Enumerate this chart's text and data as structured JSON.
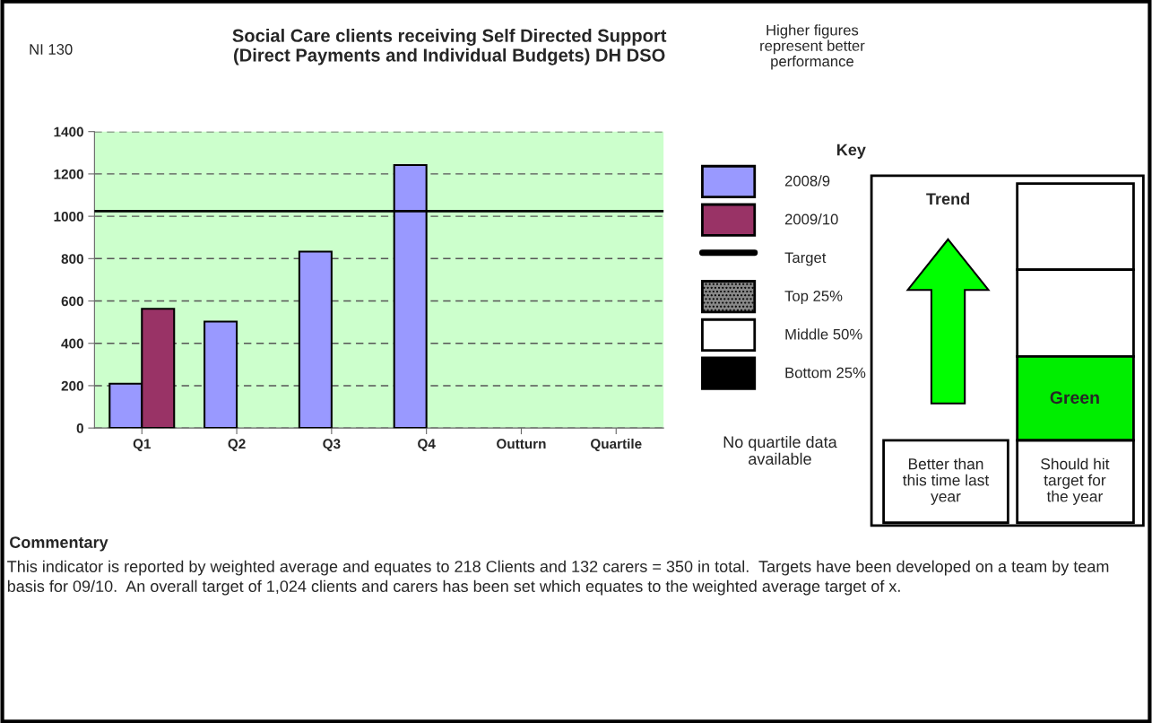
{
  "chart_data": {
    "type": "bar",
    "title": "Social Care clients receiving Self Directed Support\n(Direct Payments and Individual Budgets) DH DSO",
    "categories": [
      "Q1",
      "Q2",
      "Q3",
      "Q4",
      "Outturn",
      "Quartile"
    ],
    "series": [
      {
        "name": "2008/9",
        "color": "#9999ff",
        "values": [
          209,
          503,
          833,
          1242,
          null,
          null
        ]
      },
      {
        "name": "2009/10",
        "color": "#993366",
        "values": [
          563,
          null,
          null,
          null,
          null,
          null
        ]
      }
    ],
    "ylim": [
      0,
      1400
    ],
    "yticks": [
      0,
      200,
      400,
      600,
      800,
      1000,
      1200,
      1400
    ],
    "grid": "y",
    "ref_lines": [
      {
        "axis": "y",
        "value": 1024,
        "label": "Target",
        "color": "#000000",
        "line_style": "solid"
      }
    ],
    "legend": "right",
    "legend_title": "Key",
    "annotations": [
      "NI 130",
      "Higher figures\nrepresent better\nperformance",
      "Top 25%",
      "Middle 50%",
      "Bottom 25%",
      "No quartile data\navailable",
      "Trend",
      "Green",
      "Better than\nthis time last\nyear",
      "Should hit\ntarget for\nthe year",
      "Commentary",
      "This indicator is reported by weighted average and equates to 218 Clients and 132 carers = 350 in total.  Targets have been developed on a team by team basis for 09/10.  An overall target of 1,024 clients and carers has been set which equates to the weighted average target of x."
    ]
  }
}
